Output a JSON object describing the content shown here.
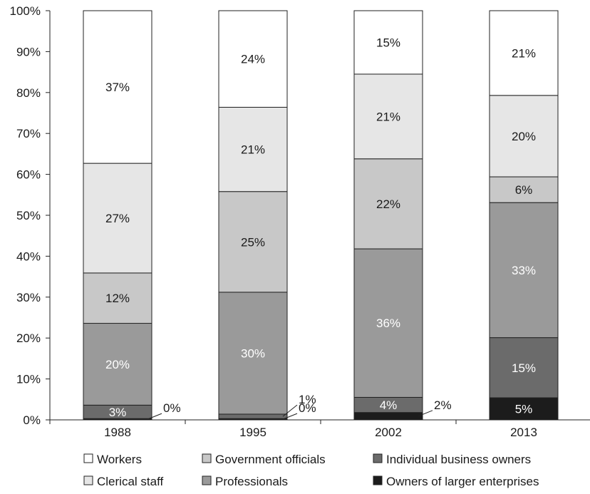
{
  "chart_data": {
    "type": "bar",
    "stacked": true,
    "title": "",
    "xlabel": "",
    "ylabel": "",
    "categories": [
      "1988",
      "1995",
      "2002",
      "2013"
    ],
    "ylim": [
      0,
      100
    ],
    "y_ticks": [
      "0%",
      "10%",
      "20%",
      "30%",
      "40%",
      "50%",
      "60%",
      "70%",
      "80%",
      "90%",
      "100%"
    ],
    "grid": false,
    "legend_position": "bottom",
    "legend_order": [
      "Workers",
      "Government officials",
      "Individual business owners",
      "Clerical staff",
      "Professionals",
      "Owners of larger enterprises"
    ],
    "series": [
      {
        "name": "Owners of larger enterprises",
        "color": "#1c1c1c",
        "label_color": "#ffffff",
        "values": [
          0.3,
          0.3,
          1.8,
          5.4
        ],
        "labels": [
          "0%",
          "0%",
          "2%",
          "5%"
        ]
      },
      {
        "name": "Individual business owners",
        "color": "#6b6b6b",
        "label_color": "#ffffff",
        "values": [
          3.3,
          1.1,
          3.7,
          14.7
        ],
        "labels": [
          "3%",
          "1%",
          "4%",
          "15%"
        ]
      },
      {
        "name": "Professionals",
        "color": "#9a9a9a",
        "label_color": "#ffffff",
        "values": [
          20.0,
          29.8,
          36.3,
          33.0
        ],
        "labels": [
          "20%",
          "30%",
          "36%",
          "33%"
        ]
      },
      {
        "name": "Government officials",
        "color": "#c8c8c8",
        "label_color": "#1a1a1a",
        "values": [
          12.3,
          24.6,
          22.0,
          6.3
        ],
        "labels": [
          "12%",
          "25%",
          "22%",
          "6%"
        ]
      },
      {
        "name": "Clerical staff",
        "color": "#e6e6e6",
        "label_color": "#1a1a1a",
        "values": [
          26.8,
          20.6,
          20.7,
          19.9
        ],
        "labels": [
          "27%",
          "21%",
          "21%",
          "20%"
        ]
      },
      {
        "name": "Workers",
        "color": "#ffffff",
        "label_color": "#1a1a1a",
        "values": [
          37.3,
          23.6,
          15.5,
          20.7
        ],
        "labels": [
          "37%",
          "24%",
          "15%",
          "21%"
        ]
      }
    ]
  }
}
